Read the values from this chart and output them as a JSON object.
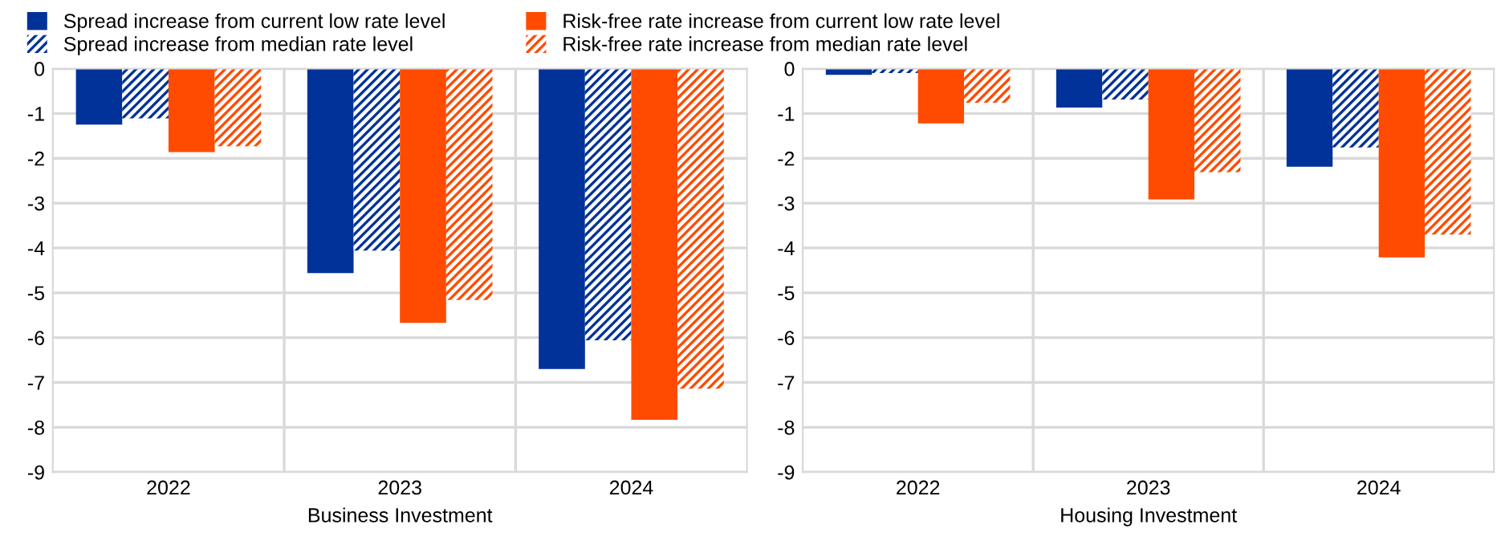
{
  "chart_data": [
    {
      "type": "bar",
      "xlabel": "Business Investment",
      "categories": [
        "2022",
        "2023",
        "2024"
      ],
      "series": [
        {
          "name": "Spread increase from current low rate level",
          "color": "#003299",
          "values": [
            -1.25,
            -4.56,
            -6.7
          ]
        },
        {
          "name": "Spread increase from median rate level",
          "color": "#003299",
          "values": [
            -1.11,
            -4.06,
            -6.06
          ]
        },
        {
          "name": "Risk-free rate increase from current low rate level",
          "color": "#ff4b00",
          "values": [
            -1.86,
            -5.67,
            -7.83
          ]
        },
        {
          "name": "Risk-free rate increase from median rate level",
          "color": "#ff4b00",
          "values": [
            -1.73,
            -5.16,
            -7.14
          ]
        }
      ],
      "ylim": [
        -9,
        0
      ],
      "yticks": [
        -9,
        -8,
        -7,
        -6,
        -5,
        -4,
        -3,
        -2,
        -1,
        0
      ],
      "grid": true,
      "legend": "top"
    },
    {
      "type": "bar",
      "xlabel": "Housing Investment",
      "categories": [
        "2022",
        "2023",
        "2024"
      ],
      "series": [
        {
          "color": "#003299",
          "values": [
            -0.14,
            -0.87,
            -2.19
          ]
        },
        {
          "color": "#003299",
          "values": [
            -0.1,
            -0.69,
            -1.76
          ]
        },
        {
          "color": "#ff4b00",
          "values": [
            -1.22,
            -2.92,
            -4.21
          ]
        },
        {
          "color": "#ff4b00",
          "values": [
            -0.76,
            -2.31,
            -3.7
          ]
        }
      ],
      "ylim": [
        -9,
        0
      ],
      "yticks": [
        -9,
        -8,
        -7,
        -6,
        -5,
        -4,
        -3,
        -2,
        -1,
        0
      ],
      "grid": true
    }
  ]
}
